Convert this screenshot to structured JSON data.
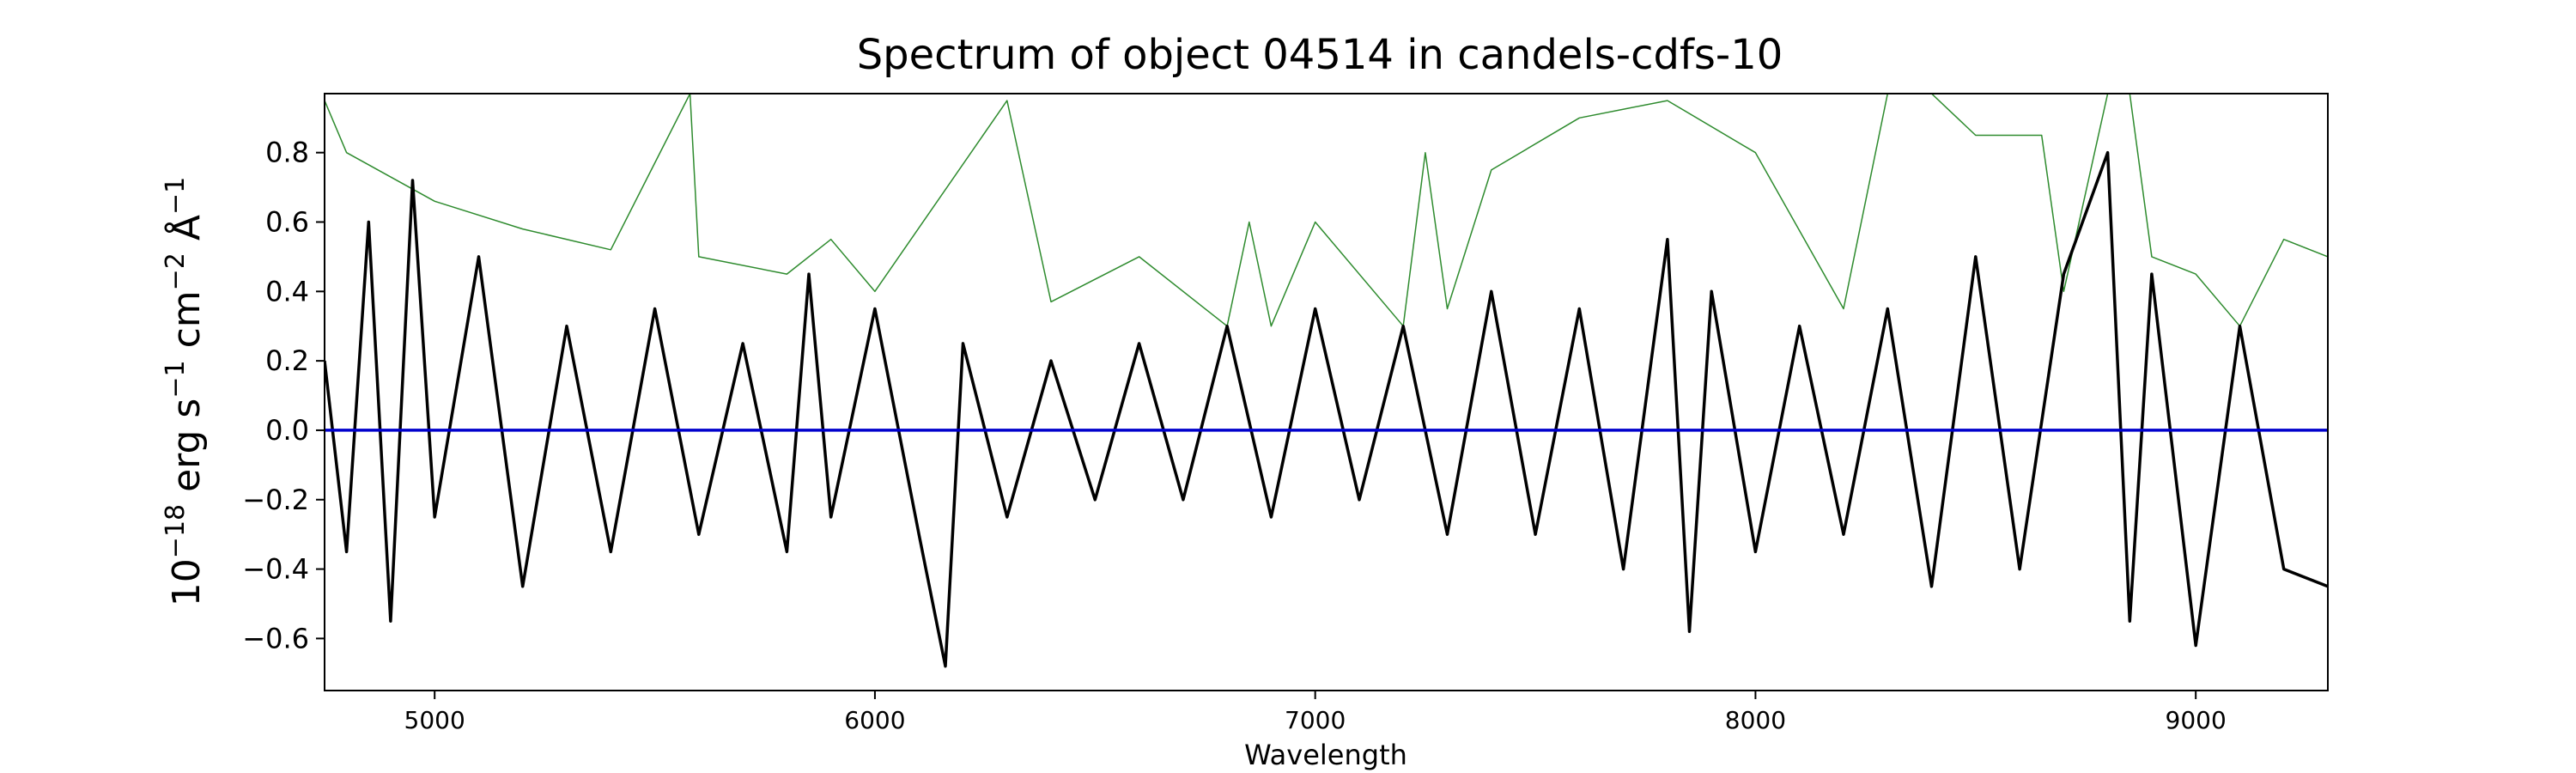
{
  "chart_data": {
    "type": "line",
    "title": "Spectrum of object 04514 in candels-cdfs-10",
    "xlabel": "Wavelength",
    "ylabel": {
      "base": "10",
      "exp1": "−18",
      "erg": " erg s",
      "exp2": "−1",
      "cm": " cm",
      "exp3": "−2",
      "ang": " Å",
      "exp4": "−1"
    },
    "xlim": [
      4750,
      9300
    ],
    "ylim": [
      -0.75,
      0.97
    ],
    "x_ticks": [
      5000,
      6000,
      7000,
      8000,
      9000
    ],
    "y_ticks": [
      -0.6,
      -0.4,
      -0.2,
      0.0,
      0.2,
      0.4,
      0.6,
      0.8
    ],
    "x_tick_labels": [
      "5000",
      "6000",
      "7000",
      "8000",
      "9000"
    ],
    "y_tick_labels": [
      "−0.6",
      "−0.4",
      "−0.2",
      "0.0",
      "0.2",
      "0.4",
      "0.6",
      "0.8"
    ],
    "grid": false,
    "legend": "none",
    "colors": {
      "flux": "#000000",
      "error": "#2e8b2e",
      "zero": "#0000cc"
    },
    "series": [
      {
        "role": "flux",
        "x": [
          4750,
          4800,
          4850,
          4900,
          4950,
          5000,
          5100,
          5200,
          5300,
          5400,
          5500,
          5600,
          5700,
          5800,
          5850,
          5900,
          6000,
          6100,
          6160,
          6200,
          6300,
          6400,
          6500,
          6600,
          6700,
          6800,
          6900,
          7000,
          7100,
          7200,
          7300,
          7400,
          7500,
          7600,
          7700,
          7800,
          7850,
          7900,
          8000,
          8100,
          8200,
          8300,
          8400,
          8500,
          8600,
          8700,
          8800,
          8850,
          8900,
          9000,
          9100,
          9200,
          9300
        ],
        "y": [
          0.2,
          -0.35,
          0.6,
          -0.55,
          0.72,
          -0.25,
          0.5,
          -0.45,
          0.3,
          -0.35,
          0.35,
          -0.3,
          0.25,
          -0.35,
          0.45,
          -0.25,
          0.35,
          -0.3,
          -0.68,
          0.25,
          -0.25,
          0.2,
          -0.2,
          0.25,
          -0.2,
          0.3,
          -0.25,
          0.35,
          -0.2,
          0.3,
          -0.3,
          0.4,
          -0.3,
          0.35,
          -0.4,
          0.55,
          -0.58,
          0.4,
          -0.35,
          0.3,
          -0.3,
          0.35,
          -0.45,
          0.5,
          -0.4,
          0.45,
          0.8,
          -0.55,
          0.45,
          -0.62,
          0.3,
          -0.4,
          -0.45
        ]
      },
      {
        "role": "error",
        "x": [
          4750,
          4800,
          5000,
          5200,
          5400,
          5580,
          5600,
          5800,
          5900,
          6000,
          6300,
          6400,
          6600,
          6800,
          6850,
          6900,
          7000,
          7200,
          7250,
          7300,
          7400,
          7600,
          7800,
          8000,
          8200,
          8300,
          8400,
          8500,
          8650,
          8700,
          8800,
          8850,
          8900,
          9000,
          9100,
          9200,
          9300
        ],
        "y": [
          0.95,
          0.8,
          0.66,
          0.58,
          0.52,
          0.97,
          0.5,
          0.45,
          0.55,
          0.4,
          0.95,
          0.37,
          0.5,
          0.3,
          0.6,
          0.3,
          0.6,
          0.3,
          0.8,
          0.35,
          0.75,
          0.9,
          0.95,
          0.8,
          0.35,
          0.97,
          0.97,
          0.85,
          0.85,
          0.4,
          0.97,
          0.97,
          0.5,
          0.45,
          0.3,
          0.55,
          0.5
        ]
      },
      {
        "role": "zero",
        "x": [
          4750,
          9300
        ],
        "y": [
          0.0,
          0.0
        ]
      }
    ]
  }
}
